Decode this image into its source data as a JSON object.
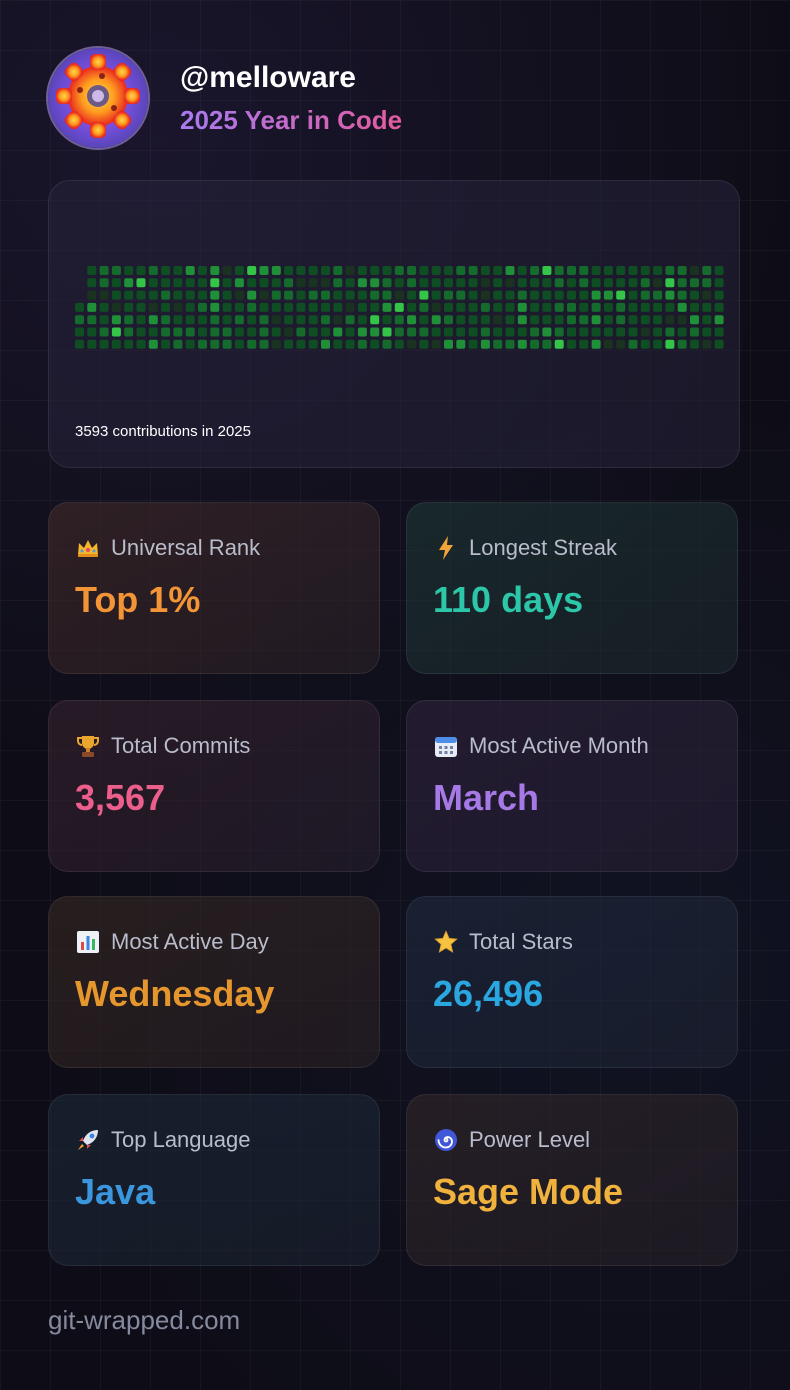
{
  "profile": {
    "username": "@melloware",
    "subtitle": "2025 Year in Code",
    "avatar_icon": "gear-logo-icon"
  },
  "contributions": {
    "summary": "3593 contributions in 2025",
    "colors": [
      "#1a3320",
      "#0f4d22",
      "#146b2c",
      "#1f8f38",
      "#34c548"
    ]
  },
  "stats": [
    {
      "icon": "crown-icon",
      "label": "Universal Rank",
      "value": "Top 1%",
      "color": "#f39536"
    },
    {
      "icon": "lightning-icon",
      "label": "Longest Streak",
      "value": "110 days",
      "color": "#2cc7a8"
    },
    {
      "icon": "trophy-icon",
      "label": "Total Commits",
      "value": "3,567",
      "color": "#ec5e8c"
    },
    {
      "icon": "calendar-icon",
      "label": "Most Active Month",
      "value": "March",
      "color": "#a679e6"
    },
    {
      "icon": "bar-chart-icon",
      "label": "Most Active Day",
      "value": "Wednesday",
      "color": "#e5962c"
    },
    {
      "icon": "star-icon",
      "label": "Total Stars",
      "value": "26,496",
      "color": "#2aa7e0"
    },
    {
      "icon": "rocket-icon",
      "label": "Top Language",
      "value": "Java",
      "color": "#3b97dd"
    },
    {
      "icon": "spiral-icon",
      "label": "Power Level",
      "value": "Sage Mode",
      "color": "#f0b23c"
    }
  ],
  "footer": {
    "site": "git-wrapped.com"
  }
}
